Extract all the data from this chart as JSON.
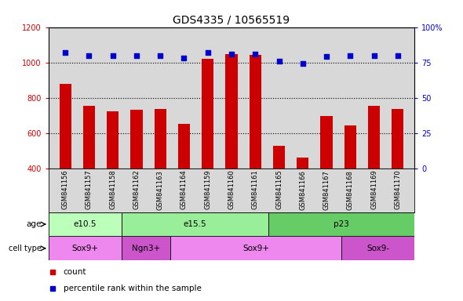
{
  "title": "GDS4335 / 10565519",
  "samples": [
    "GSM841156",
    "GSM841157",
    "GSM841158",
    "GSM841162",
    "GSM841163",
    "GSM841164",
    "GSM841159",
    "GSM841160",
    "GSM841161",
    "GSM841165",
    "GSM841166",
    "GSM841167",
    "GSM841168",
    "GSM841169",
    "GSM841170"
  ],
  "counts": [
    880,
    757,
    723,
    733,
    738,
    652,
    1020,
    1048,
    1043,
    527,
    463,
    698,
    643,
    757,
    735
  ],
  "percentile_ranks": [
    82,
    80,
    80,
    80,
    80,
    78,
    82,
    81,
    81,
    76,
    74,
    79,
    80,
    80,
    80
  ],
  "ylim_left": [
    400,
    1200
  ],
  "ylim_right": [
    0,
    100
  ],
  "yticks_left": [
    400,
    600,
    800,
    1000,
    1200
  ],
  "yticks_right": [
    0,
    25,
    50,
    75,
    100
  ],
  "bar_color": "#cc0000",
  "dot_color": "#0000cc",
  "age_groups": [
    {
      "label": "e10.5",
      "start": 0,
      "end": 3,
      "color": "#bbffbb"
    },
    {
      "label": "e15.5",
      "start": 3,
      "end": 9,
      "color": "#99ee99"
    },
    {
      "label": "p23",
      "start": 9,
      "end": 15,
      "color": "#66cc66"
    }
  ],
  "cell_type_groups": [
    {
      "label": "Sox9+",
      "start": 0,
      "end": 3,
      "color": "#ee88ee"
    },
    {
      "label": "Ngn3+",
      "start": 3,
      "end": 5,
      "color": "#cc55cc"
    },
    {
      "label": "Sox9+",
      "start": 5,
      "end": 12,
      "color": "#ee88ee"
    },
    {
      "label": "Sox9-",
      "start": 12,
      "end": 15,
      "color": "#cc55cc"
    }
  ],
  "legend_items": [
    {
      "label": "count",
      "color": "#cc0000"
    },
    {
      "label": "percentile rank within the sample",
      "color": "#0000cc"
    }
  ],
  "dotted_gridlines": [
    600,
    800,
    1000
  ],
  "bar_bottom": 400,
  "plot_bg_color": "#d8d8d8",
  "xlabels_bg_color": "#d8d8d8"
}
